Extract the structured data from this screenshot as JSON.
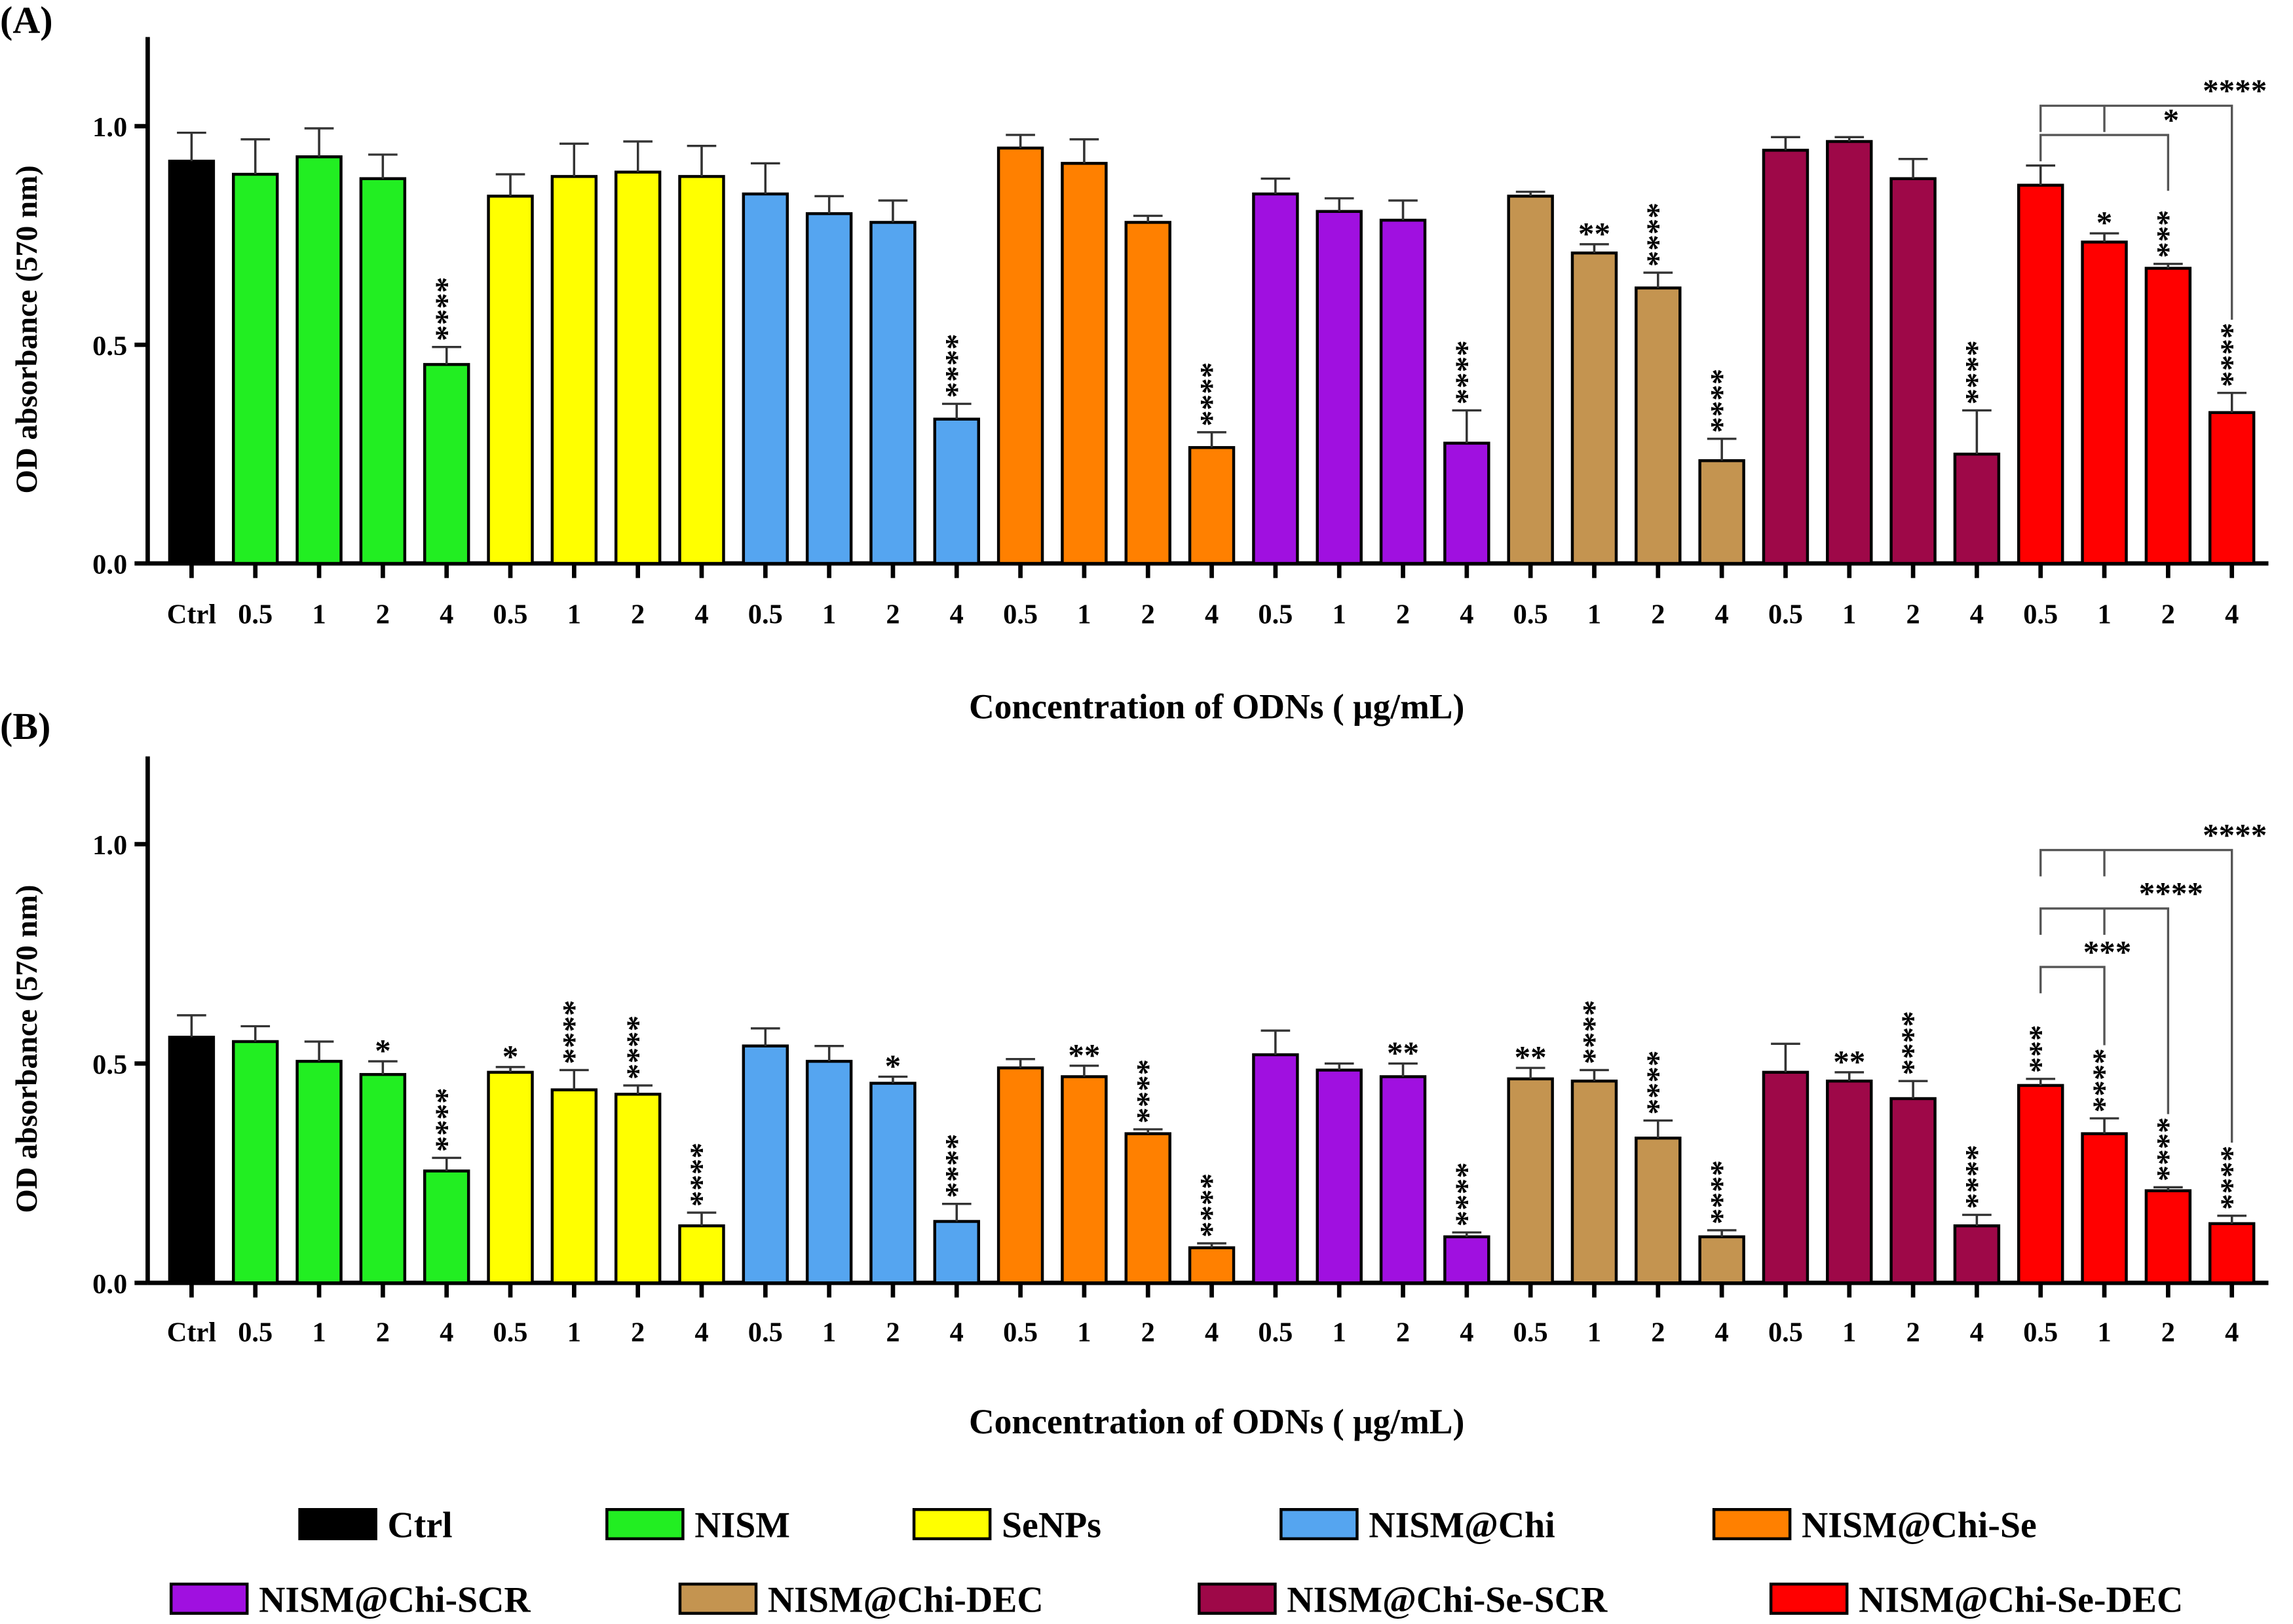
{
  "chart_data": [
    {
      "type": "bar",
      "panel_label": "(A)",
      "ylabel": "OD absorbance (570 nm)",
      "xlabel": "Concentration of ODNs ( μg/mL)",
      "ylim": [
        0,
        1.2
      ],
      "yticks": [
        "0.0",
        "0.5",
        "1.0"
      ],
      "categories": [
        "Ctrl",
        "0.5",
        "1",
        "2",
        "4",
        "0.5",
        "1",
        "2",
        "4",
        "0.5",
        "1",
        "2",
        "4",
        "0.5",
        "1",
        "2",
        "4",
        "0.5",
        "1",
        "2",
        "4",
        "0.5",
        "1",
        "2",
        "4",
        "0.5",
        "1",
        "2",
        "4",
        "0.5",
        "1",
        "2",
        "4"
      ],
      "groups": [
        "Ctrl",
        "NISM",
        "NISM",
        "NISM",
        "NISM",
        "SeNPs",
        "SeNPs",
        "SeNPs",
        "SeNPs",
        "NISM@Chi",
        "NISM@Chi",
        "NISM@Chi",
        "NISM@Chi",
        "NISM@Chi-Se",
        "NISM@Chi-Se",
        "NISM@Chi-Se",
        "NISM@Chi-Se",
        "NISM@Chi-SCR",
        "NISM@Chi-SCR",
        "NISM@Chi-SCR",
        "NISM@Chi-SCR",
        "NISM@Chi-DEC",
        "NISM@Chi-DEC",
        "NISM@Chi-DEC",
        "NISM@Chi-DEC",
        "NISM@Chi-Se-SCR",
        "NISM@Chi-Se-SCR",
        "NISM@Chi-Se-SCR",
        "NISM@Chi-Se-SCR",
        "NISM@Chi-Se-DEC",
        "NISM@Chi-Se-DEC",
        "NISM@Chi-Se-DEC",
        "NISM@Chi-Se-DEC"
      ],
      "values": [
        0.92,
        0.89,
        0.93,
        0.88,
        0.455,
        0.84,
        0.885,
        0.895,
        0.885,
        0.845,
        0.8,
        0.78,
        0.33,
        0.95,
        0.915,
        0.78,
        0.265,
        0.845,
        0.805,
        0.785,
        0.275,
        0.84,
        0.71,
        0.63,
        0.235,
        0.945,
        0.965,
        0.88,
        0.25,
        0.865,
        0.735,
        0.675,
        0.345
      ],
      "errors": [
        0.065,
        0.08,
        0.065,
        0.055,
        0.04,
        0.05,
        0.075,
        0.07,
        0.07,
        0.07,
        0.04,
        0.05,
        0.035,
        0.03,
        0.055,
        0.015,
        0.035,
        0.035,
        0.03,
        0.045,
        0.075,
        0.01,
        0.02,
        0.035,
        0.05,
        0.03,
        0.01,
        0.045,
        0.1,
        0.045,
        0.02,
        0.01,
        0.045
      ],
      "significance": [
        "",
        "",
        "",
        "",
        "****",
        "",
        "",
        "",
        "",
        "",
        "",
        "",
        "****",
        "",
        "",
        "",
        "****",
        "",
        "",
        "",
        "****",
        "",
        "**",
        "****",
        "****",
        "",
        "",
        "",
        "****",
        "",
        "*",
        "***",
        "****"
      ],
      "brackets": [
        {
          "from": 29,
          "to": 31,
          "label": "*"
        },
        {
          "from": 29,
          "to": 32,
          "label": "****",
          "mid": 30
        }
      ]
    },
    {
      "type": "bar",
      "panel_label": "(B)",
      "ylabel": "OD absorbance (570 nm)",
      "xlabel": "Concentration of ODNs ( μg/mL)",
      "ylim": [
        0,
        1.2
      ],
      "yticks": [
        "0.0",
        "0.5",
        "1.0"
      ],
      "categories": [
        "Ctrl",
        "0.5",
        "1",
        "2",
        "4",
        "0.5",
        "1",
        "2",
        "4",
        "0.5",
        "1",
        "2",
        "4",
        "0.5",
        "1",
        "2",
        "4",
        "0.5",
        "1",
        "2",
        "4",
        "0.5",
        "1",
        "2",
        "4",
        "0.5",
        "1",
        "2",
        "4",
        "0.5",
        "1",
        "2",
        "4"
      ],
      "values": [
        0.56,
        0.55,
        0.505,
        0.475,
        0.255,
        0.48,
        0.44,
        0.43,
        0.13,
        0.54,
        0.505,
        0.455,
        0.14,
        0.49,
        0.47,
        0.34,
        0.08,
        0.52,
        0.485,
        0.47,
        0.105,
        0.465,
        0.46,
        0.33,
        0.105,
        0.48,
        0.46,
        0.42,
        0.13,
        0.45,
        0.34,
        0.21,
        0.135
      ],
      "errors": [
        0.05,
        0.035,
        0.045,
        0.03,
        0.03,
        0.012,
        0.045,
        0.02,
        0.03,
        0.04,
        0.035,
        0.015,
        0.04,
        0.02,
        0.025,
        0.01,
        0.01,
        0.055,
        0.015,
        0.03,
        0.01,
        0.025,
        0.025,
        0.04,
        0.015,
        0.065,
        0.02,
        0.04,
        0.025,
        0.015,
        0.035,
        0.008,
        0.018
      ],
      "significance": [
        "",
        "",
        "",
        "*",
        "****",
        "*",
        "****",
        "****",
        "****",
        "",
        "",
        "*",
        "****",
        "",
        "**",
        "****",
        "****",
        "",
        "",
        "**",
        "****",
        "**",
        "****",
        "****",
        "****",
        "",
        "**",
        "****",
        "****",
        "***",
        "****",
        "****",
        "****"
      ],
      "brackets": [
        {
          "from": 29,
          "to": 30,
          "label": "***"
        },
        {
          "from": 29,
          "to": 31,
          "label": "****",
          "mid": 30
        },
        {
          "from": 29,
          "to": 32,
          "label": "****",
          "mid": 30
        }
      ]
    }
  ],
  "legend": [
    {
      "label": "Ctrl",
      "color": "#000000"
    },
    {
      "label": "NISM",
      "color": "#22ee22"
    },
    {
      "label": "SeNPs",
      "color": "#ffff00"
    },
    {
      "label": "NISM@Chi",
      "color": "#55a5f0"
    },
    {
      "label": "NISM@Chi-Se",
      "color": "#ff8000"
    },
    {
      "label": "NISM@Chi-SCR",
      "color": "#a010e0"
    },
    {
      "label": "NISM@Chi-DEC",
      "color": "#c49450"
    },
    {
      "label": "NISM@Chi-Se-SCR",
      "color": "#9e0848"
    },
    {
      "label": "NISM@Chi-Se-DEC",
      "color": "#ff0000"
    }
  ]
}
